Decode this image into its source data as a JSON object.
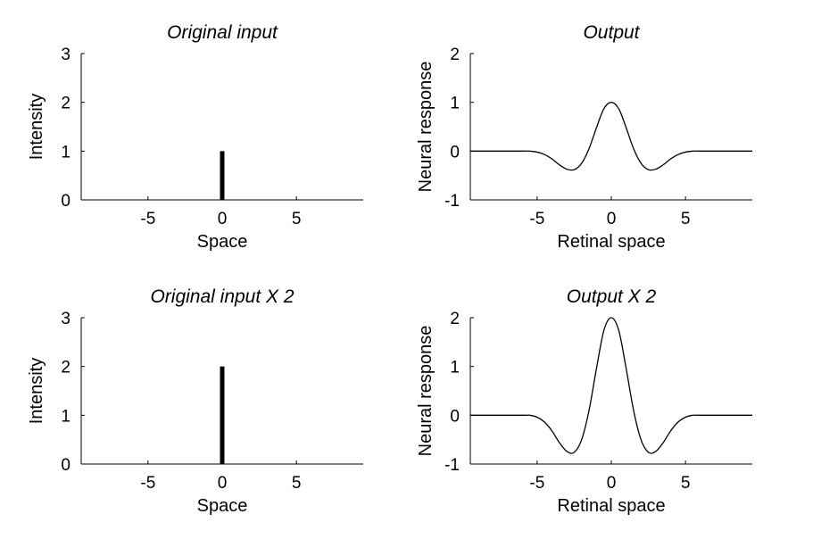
{
  "chart_data": [
    {
      "type": "bar",
      "title": "Original input",
      "xlabel": "Space",
      "ylabel": "Intensity",
      "xlim": [
        -9.5,
        9.5
      ],
      "ylim": [
        0,
        3
      ],
      "xticks": [
        "-5",
        "0",
        "5"
      ],
      "yticks": [
        "0",
        "1",
        "2",
        "3"
      ],
      "grid": false,
      "series": [
        {
          "x": [
            0
          ],
          "values": [
            1
          ]
        }
      ]
    },
    {
      "type": "line",
      "title": "Output",
      "xlabel": "Retinal space",
      "ylabel": "Neural response",
      "xlim": [
        -9.5,
        9.5
      ],
      "ylim": [
        -1,
        2
      ],
      "xticks": [
        "-5",
        "0",
        "5"
      ],
      "yticks": [
        "-1",
        "0",
        "1",
        "2"
      ],
      "grid": false,
      "series": [
        {
          "x": [
            -9.5,
            -6,
            -5.5,
            -5,
            -4.5,
            -4,
            -3.5,
            -3,
            -2.5,
            -2,
            -1.5,
            -1,
            -0.5,
            0,
            0.5,
            1,
            1.5,
            2,
            2.5,
            3,
            3.5,
            4,
            4.5,
            5,
            5.5,
            6,
            9.5
          ],
          "values": [
            0,
            0,
            0,
            -0.02,
            -0.07,
            -0.16,
            -0.28,
            -0.37,
            -0.38,
            -0.25,
            0.05,
            0.48,
            0.87,
            1.0,
            0.87,
            0.48,
            0.05,
            -0.25,
            -0.38,
            -0.37,
            -0.28,
            -0.16,
            -0.07,
            -0.02,
            0,
            0,
            0
          ]
        }
      ]
    },
    {
      "type": "bar",
      "title": "Original input X 2",
      "xlabel": "Space",
      "ylabel": "Intensity",
      "xlim": [
        -9.5,
        9.5
      ],
      "ylim": [
        0,
        3
      ],
      "xticks": [
        "-5",
        "0",
        "5"
      ],
      "yticks": [
        "0",
        "1",
        "2",
        "3"
      ],
      "grid": false,
      "series": [
        {
          "x": [
            0
          ],
          "values": [
            2
          ]
        }
      ]
    },
    {
      "type": "line",
      "title": "Output X 2",
      "xlabel": "Retinal space",
      "ylabel": "Neural response",
      "xlim": [
        -9.5,
        9.5
      ],
      "ylim": [
        -1,
        2
      ],
      "xticks": [
        "-5",
        "0",
        "5"
      ],
      "yticks": [
        "-1",
        "0",
        "1",
        "2"
      ],
      "grid": false,
      "series": [
        {
          "x": [
            -9.5,
            -6,
            -5.5,
            -5,
            -4.5,
            -4,
            -3.5,
            -3,
            -2.5,
            -2,
            -1.5,
            -1,
            -0.5,
            0,
            0.5,
            1,
            1.5,
            2,
            2.5,
            3,
            3.5,
            4,
            4.5,
            5,
            5.5,
            6,
            9.5
          ],
          "values": [
            0,
            0,
            0,
            -0.04,
            -0.14,
            -0.32,
            -0.56,
            -0.74,
            -0.76,
            -0.5,
            0.1,
            0.96,
            1.74,
            2.0,
            1.74,
            0.96,
            0.1,
            -0.5,
            -0.76,
            -0.74,
            -0.56,
            -0.32,
            -0.14,
            -0.04,
            0,
            0,
            0
          ]
        }
      ]
    }
  ]
}
